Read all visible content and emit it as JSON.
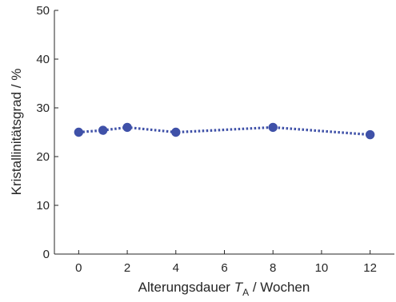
{
  "chart_data": {
    "type": "line",
    "title": "",
    "xlabel": {
      "prefix": "Alterungsdauer ",
      "symbol": "T",
      "subscript": "A",
      "suffix": " / Wochen"
    },
    "ylabel": "Kristallinitätsgrad / %",
    "xlim": [
      -1,
      13
    ],
    "ylim": [
      0,
      50
    ],
    "xticks": [
      0,
      2,
      4,
      6,
      8,
      10,
      12
    ],
    "yticks": [
      0,
      10,
      20,
      30,
      40,
      50
    ],
    "grid": false,
    "series": [
      {
        "x": [
          0,
          1,
          2,
          4,
          8,
          12
        ],
        "y": [
          25.0,
          25.4,
          26.0,
          25.0,
          26.0,
          24.5
        ],
        "color": "#3F51A8",
        "line_style": "dotted",
        "marker": "filled-circle"
      }
    ]
  }
}
